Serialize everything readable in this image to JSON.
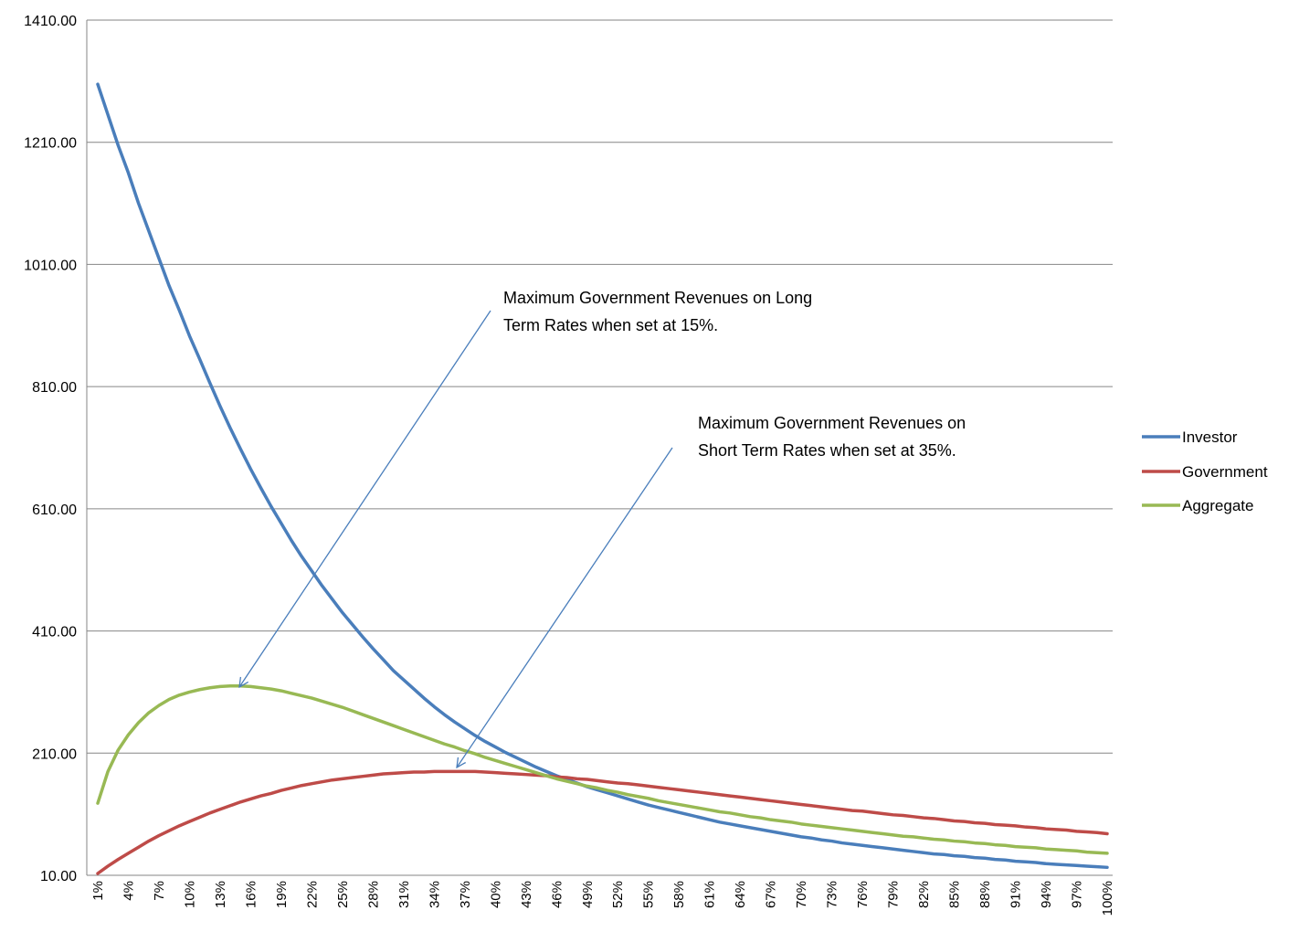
{
  "chart_data": {
    "type": "line",
    "y_ticks": [
      "1410.00",
      "1210.00",
      "1010.00",
      "810.00",
      "610.00",
      "410.00",
      "210.00",
      "10.00"
    ],
    "ylim": [
      10,
      1410
    ],
    "grid": true,
    "legend_position": "right",
    "categories": [
      "1%",
      "2%",
      "3%",
      "4%",
      "5%",
      "6%",
      "7%",
      "8%",
      "9%",
      "10%",
      "11%",
      "12%",
      "13%",
      "14%",
      "15%",
      "16%",
      "17%",
      "18%",
      "19%",
      "20%",
      "21%",
      "22%",
      "23%",
      "24%",
      "25%",
      "26%",
      "27%",
      "28%",
      "29%",
      "30%",
      "31%",
      "32%",
      "33%",
      "34%",
      "35%",
      "36%",
      "37%",
      "38%",
      "39%",
      "40%",
      "41%",
      "42%",
      "43%",
      "44%",
      "45%",
      "46%",
      "47%",
      "48%",
      "49%",
      "50%",
      "51%",
      "52%",
      "53%",
      "54%",
      "55%",
      "56%",
      "57%",
      "58%",
      "59%",
      "60%",
      "61%",
      "62%",
      "63%",
      "64%",
      "65%",
      "66%",
      "67%",
      "68%",
      "69%",
      "70%",
      "71%",
      "72%",
      "73%",
      "74%",
      "75%",
      "76%",
      "77%",
      "78%",
      "79%",
      "80%",
      "81%",
      "82%",
      "83%",
      "84%",
      "85%",
      "86%",
      "87%",
      "88%",
      "89%",
      "90%",
      "91%",
      "92%",
      "93%",
      "94%",
      "95%",
      "96%",
      "97%",
      "98%",
      "99%",
      "100%"
    ],
    "series": [
      {
        "name": "Investor",
        "color": "#4A7EBB",
        "values": [
          1305,
          1255,
          1205,
          1160,
          1110,
          1065,
          1020,
          975,
          935,
          893,
          855,
          816,
          778,
          742,
          708,
          675,
          644,
          614,
          586,
          558,
          532,
          508,
          484,
          462,
          440,
          420,
          400,
          381,
          363,
          345,
          330,
          315,
          300,
          286,
          273,
          261,
          250,
          239,
          229,
          220,
          211,
          203,
          195,
          187,
          180,
          173,
          167,
          161,
          155,
          150,
          145,
          140,
          135,
          130,
          125,
          121,
          117,
          113,
          109,
          105,
          101,
          97,
          94,
          91,
          88,
          85,
          82,
          79,
          76,
          73,
          71,
          68,
          66,
          63,
          61,
          59,
          57,
          55,
          53,
          51,
          49,
          47,
          45,
          44,
          42,
          41,
          39,
          38,
          36,
          35,
          33,
          32,
          31,
          29,
          28,
          27,
          26,
          25,
          24,
          23
        ]
      },
      {
        "name": "Government",
        "color": "#BE4B48",
        "values": [
          13,
          25,
          36,
          46,
          56,
          66,
          75,
          83,
          91,
          98,
          105,
          112,
          118,
          124,
          130,
          135,
          140,
          144,
          149,
          153,
          157,
          160,
          163,
          166,
          168,
          170,
          172,
          174,
          176,
          177,
          178,
          179,
          179,
          180,
          180,
          180,
          180,
          180,
          179,
          178,
          177,
          176,
          175,
          174,
          173,
          171,
          170,
          168,
          167,
          165,
          163,
          161,
          160,
          158,
          156,
          154,
          152,
          150,
          148,
          146,
          144,
          142,
          140,
          138,
          136,
          134,
          132,
          130,
          128,
          126,
          124,
          122,
          120,
          118,
          116,
          115,
          113,
          111,
          109,
          108,
          106,
          104,
          103,
          101,
          99,
          98,
          96,
          95,
          93,
          92,
          91,
          89,
          88,
          86,
          85,
          84,
          82,
          81,
          80,
          78
        ]
      },
      {
        "name": "Aggregate",
        "color": "#98B954",
        "values": [
          128,
          180,
          215,
          240,
          260,
          276,
          288,
          298,
          305,
          310,
          314,
          317,
          319,
          320,
          320,
          319,
          317,
          315,
          312,
          308,
          304,
          300,
          295,
          290,
          285,
          279,
          273,
          267,
          261,
          255,
          249,
          243,
          237,
          231,
          225,
          220,
          214,
          209,
          203,
          198,
          193,
          188,
          183,
          178,
          173,
          168,
          164,
          160,
          156,
          153,
          149,
          146,
          142,
          139,
          136,
          132,
          129,
          126,
          123,
          120,
          117,
          114,
          112,
          109,
          106,
          104,
          101,
          99,
          97,
          94,
          92,
          90,
          88,
          86,
          84,
          82,
          80,
          78,
          76,
          74,
          73,
          71,
          69,
          68,
          66,
          65,
          63,
          62,
          60,
          59,
          57,
          56,
          55,
          53,
          52,
          51,
          50,
          48,
          47,
          46
        ]
      }
    ],
    "annotations": [
      {
        "lines": [
          "Maximum Government Revenues on Long",
          "Term Rates when set at 15%."
        ],
        "points_to": {
          "category": "15%",
          "series": "Aggregate"
        }
      },
      {
        "lines": [
          "Maximum Government Revenues on",
          "Short Term Rates when set at 35%."
        ],
        "points_to": {
          "category": "36%",
          "series": "Government"
        }
      }
    ]
  }
}
